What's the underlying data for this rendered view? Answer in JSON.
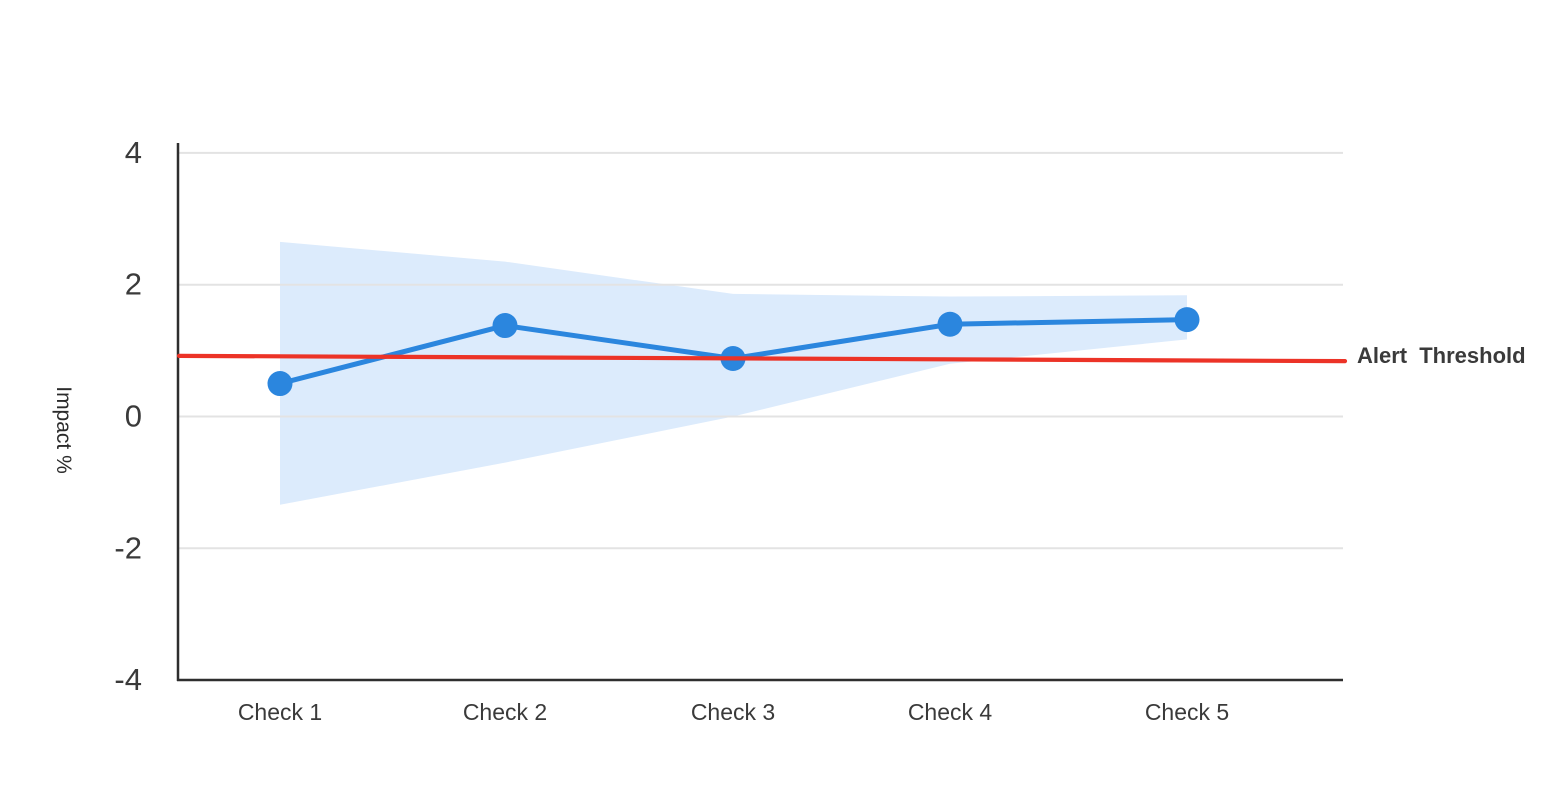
{
  "chart_data": {
    "type": "line",
    "title": "",
    "categories": [
      "Check 1",
      "Check 2",
      "Check 3",
      "Check 4",
      "Check 5"
    ],
    "series": [
      {
        "name": "Impact",
        "values": [
          0.5,
          1.38,
          0.88,
          1.4,
          1.47
        ],
        "color": "#2B86DE",
        "marker": "circle",
        "marker_radius": 12.5,
        "line_width": 5
      }
    ],
    "band": {
      "name": "confidence-band",
      "upper": [
        2.65,
        2.35,
        1.86,
        1.82,
        1.84
      ],
      "lower": [
        -1.34,
        -0.7,
        0.0,
        0.8,
        1.17
      ],
      "color": "#DCEBFC"
    },
    "threshold": {
      "label": "Alert Threshold",
      "start_value": 0.92,
      "end_value": 0.84,
      "color": "#EC3327",
      "line_width": 4.2
    },
    "xlabel": "",
    "ylabel": "Impact %",
    "ylim": [
      -4,
      4.15
    ],
    "yticks": [
      4,
      2,
      0,
      -2,
      -4
    ],
    "grid": true,
    "legend_position": "none"
  },
  "colors": {
    "background": "#FFFFFF",
    "gridline": "#E3E3E3",
    "axis": "#2E2E2E",
    "tick_text": "#3A3A3A"
  }
}
